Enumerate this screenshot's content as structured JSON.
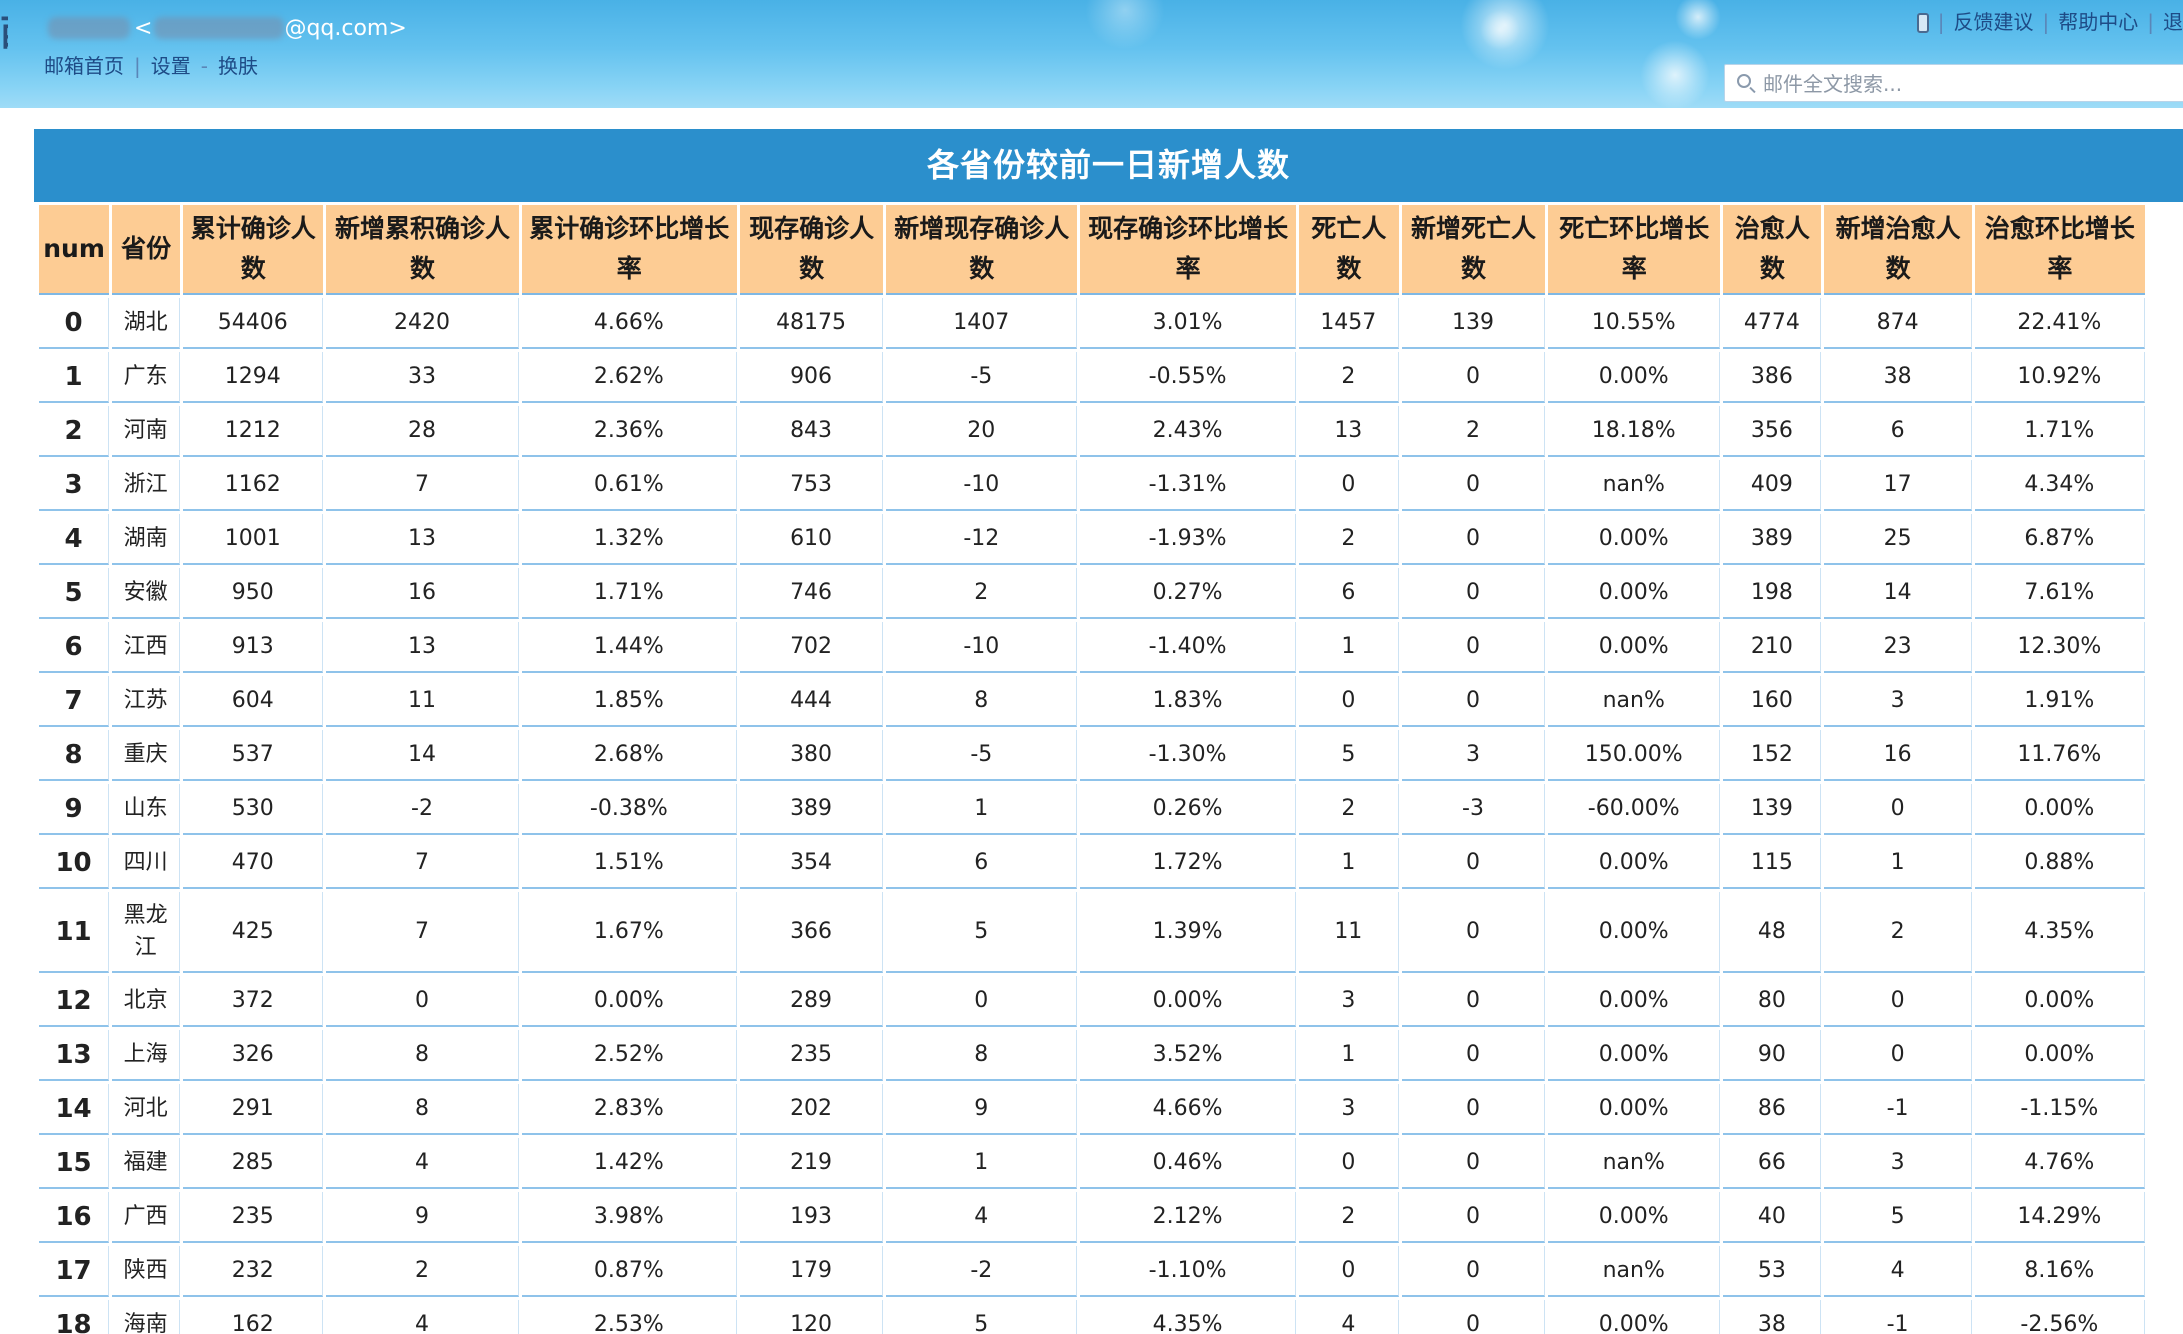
{
  "header": {
    "left_edge_char": "西",
    "user_open": "<",
    "email_suffix": "@qq.com>",
    "nav": [
      {
        "label": "邮箱首页"
      },
      {
        "label": "设置"
      },
      {
        "label": "换肤"
      }
    ],
    "nav_separators": [
      "|",
      "-"
    ],
    "top_right": [
      {
        "label": "反馈建议"
      },
      {
        "label": "帮助中心"
      },
      {
        "label": "退"
      }
    ],
    "search_placeholder": "邮件全文搜索..."
  },
  "banner_title": "各省份较前一日新增人数",
  "table": {
    "columns": [
      "num",
      "省份",
      "累计确诊人数",
      "新增累积确诊人数",
      "累计确诊环比增长率",
      "现存确诊人数",
      "新增现存确诊人数",
      "现存确诊环比增长率",
      "死亡人数",
      "新增死亡人数",
      "死亡环比增长率",
      "治愈人数",
      "新增治愈人数",
      "治愈环比增长率"
    ],
    "rows": [
      [
        "0",
        "湖北",
        "54406",
        "2420",
        "4.66%",
        "48175",
        "1407",
        "3.01%",
        "1457",
        "139",
        "10.55%",
        "4774",
        "874",
        "22.41%"
      ],
      [
        "1",
        "广东",
        "1294",
        "33",
        "2.62%",
        "906",
        "-5",
        "-0.55%",
        "2",
        "0",
        "0.00%",
        "386",
        "38",
        "10.92%"
      ],
      [
        "2",
        "河南",
        "1212",
        "28",
        "2.36%",
        "843",
        "20",
        "2.43%",
        "13",
        "2",
        "18.18%",
        "356",
        "6",
        "1.71%"
      ],
      [
        "3",
        "浙江",
        "1162",
        "7",
        "0.61%",
        "753",
        "-10",
        "-1.31%",
        "0",
        "0",
        "nan%",
        "409",
        "17",
        "4.34%"
      ],
      [
        "4",
        "湖南",
        "1001",
        "13",
        "1.32%",
        "610",
        "-12",
        "-1.93%",
        "2",
        "0",
        "0.00%",
        "389",
        "25",
        "6.87%"
      ],
      [
        "5",
        "安徽",
        "950",
        "16",
        "1.71%",
        "746",
        "2",
        "0.27%",
        "6",
        "0",
        "0.00%",
        "198",
        "14",
        "7.61%"
      ],
      [
        "6",
        "江西",
        "913",
        "13",
        "1.44%",
        "702",
        "-10",
        "-1.40%",
        "1",
        "0",
        "0.00%",
        "210",
        "23",
        "12.30%"
      ],
      [
        "7",
        "江苏",
        "604",
        "11",
        "1.85%",
        "444",
        "8",
        "1.83%",
        "0",
        "0",
        "nan%",
        "160",
        "3",
        "1.91%"
      ],
      [
        "8",
        "重庆",
        "537",
        "14",
        "2.68%",
        "380",
        "-5",
        "-1.30%",
        "5",
        "3",
        "150.00%",
        "152",
        "16",
        "11.76%"
      ],
      [
        "9",
        "山东",
        "530",
        "-2",
        "-0.38%",
        "389",
        "1",
        "0.26%",
        "2",
        "-3",
        "-60.00%",
        "139",
        "0",
        "0.00%"
      ],
      [
        "10",
        "四川",
        "470",
        "7",
        "1.51%",
        "354",
        "6",
        "1.72%",
        "1",
        "0",
        "0.00%",
        "115",
        "1",
        "0.88%"
      ],
      [
        "11",
        "黑龙江",
        "425",
        "7",
        "1.67%",
        "366",
        "5",
        "1.39%",
        "11",
        "0",
        "0.00%",
        "48",
        "2",
        "4.35%"
      ],
      [
        "12",
        "北京",
        "372",
        "0",
        "0.00%",
        "289",
        "0",
        "0.00%",
        "3",
        "0",
        "0.00%",
        "80",
        "0",
        "0.00%"
      ],
      [
        "13",
        "上海",
        "326",
        "8",
        "2.52%",
        "235",
        "8",
        "3.52%",
        "1",
        "0",
        "0.00%",
        "90",
        "0",
        "0.00%"
      ],
      [
        "14",
        "河北",
        "291",
        "8",
        "2.83%",
        "202",
        "9",
        "4.66%",
        "3",
        "0",
        "0.00%",
        "86",
        "-1",
        "-1.15%"
      ],
      [
        "15",
        "福建",
        "285",
        "4",
        "1.42%",
        "219",
        "1",
        "0.46%",
        "0",
        "0",
        "nan%",
        "66",
        "3",
        "4.76%"
      ],
      [
        "16",
        "广西",
        "235",
        "9",
        "3.98%",
        "193",
        "4",
        "2.12%",
        "2",
        "0",
        "0.00%",
        "40",
        "5",
        "14.29%"
      ],
      [
        "17",
        "陕西",
        "232",
        "2",
        "0.87%",
        "179",
        "-2",
        "-1.10%",
        "0",
        "0",
        "nan%",
        "53",
        "4",
        "8.16%"
      ],
      [
        "18",
        "海南",
        "162",
        "4",
        "2.53%",
        "120",
        "5",
        "4.35%",
        "4",
        "0",
        "0.00%",
        "38",
        "-1",
        "-2.56%"
      ]
    ]
  }
}
